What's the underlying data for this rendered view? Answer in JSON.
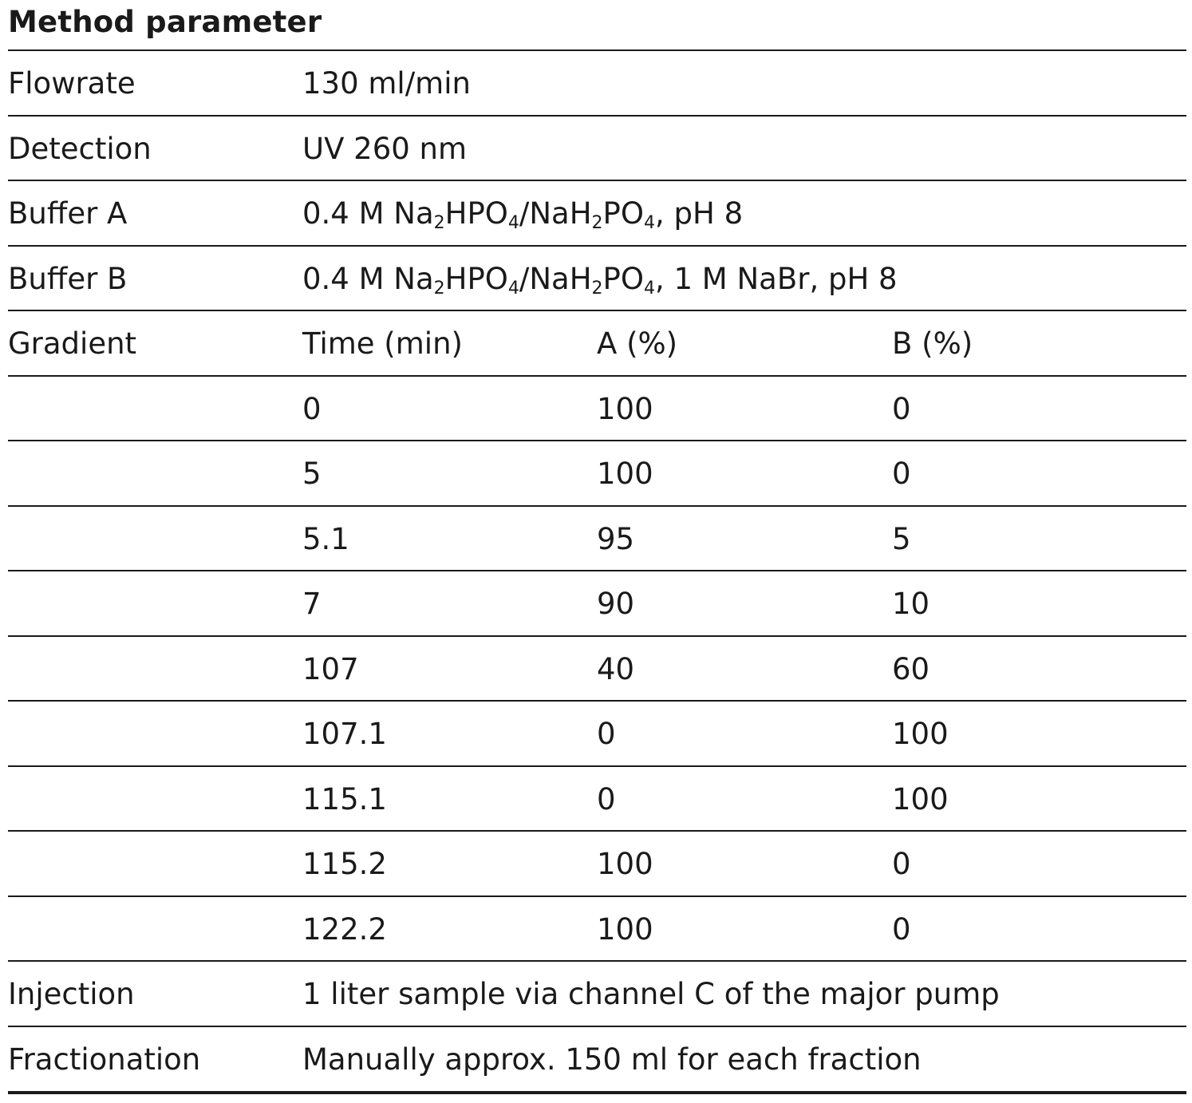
{
  "title": "Method parameter",
  "params_top": [
    {
      "label": "Flowrate",
      "value": "130 ml/min"
    },
    {
      "label": "Detection",
      "value": "UV 260 nm"
    }
  ],
  "buffers": [
    {
      "label": "Buffer A",
      "value_prefix": "0.4 M Na",
      "sub1": "2",
      "mid1": "HPO",
      "sub2": "4",
      "mid2": "/NaH",
      "sub3": "2",
      "mid3": "PO",
      "sub4": "4",
      "value_suffix": ", pH 8"
    },
    {
      "label": "Buffer B",
      "value_prefix": "0.4 M Na",
      "sub1": "2",
      "mid1": "HPO",
      "sub2": "4",
      "mid2": "/NaH",
      "sub3": "2",
      "mid3": "PO",
      "sub4": "4",
      "value_suffix": ", 1 M NaBr, pH 8"
    }
  ],
  "gradient": {
    "label": "Gradient",
    "headers": [
      "Time (min)",
      "A (%)",
      "B (%)"
    ],
    "rows": [
      [
        "0",
        "100",
        "0"
      ],
      [
        "5",
        "100",
        "0"
      ],
      [
        "5.1",
        "95",
        "5"
      ],
      [
        "7",
        "90",
        "10"
      ],
      [
        "107",
        "40",
        "60"
      ],
      [
        "107.1",
        "0",
        "100"
      ],
      [
        "115.1",
        "0",
        "100"
      ],
      [
        "115.2",
        "100",
        "0"
      ],
      [
        "122.2",
        "100",
        "0"
      ]
    ]
  },
  "params_bottom": [
    {
      "label": "Injection",
      "value": "1 liter sample via channel C of the major pump"
    },
    {
      "label": "Fractionation",
      "value": "Manually approx. 150 ml for each fraction"
    }
  ]
}
